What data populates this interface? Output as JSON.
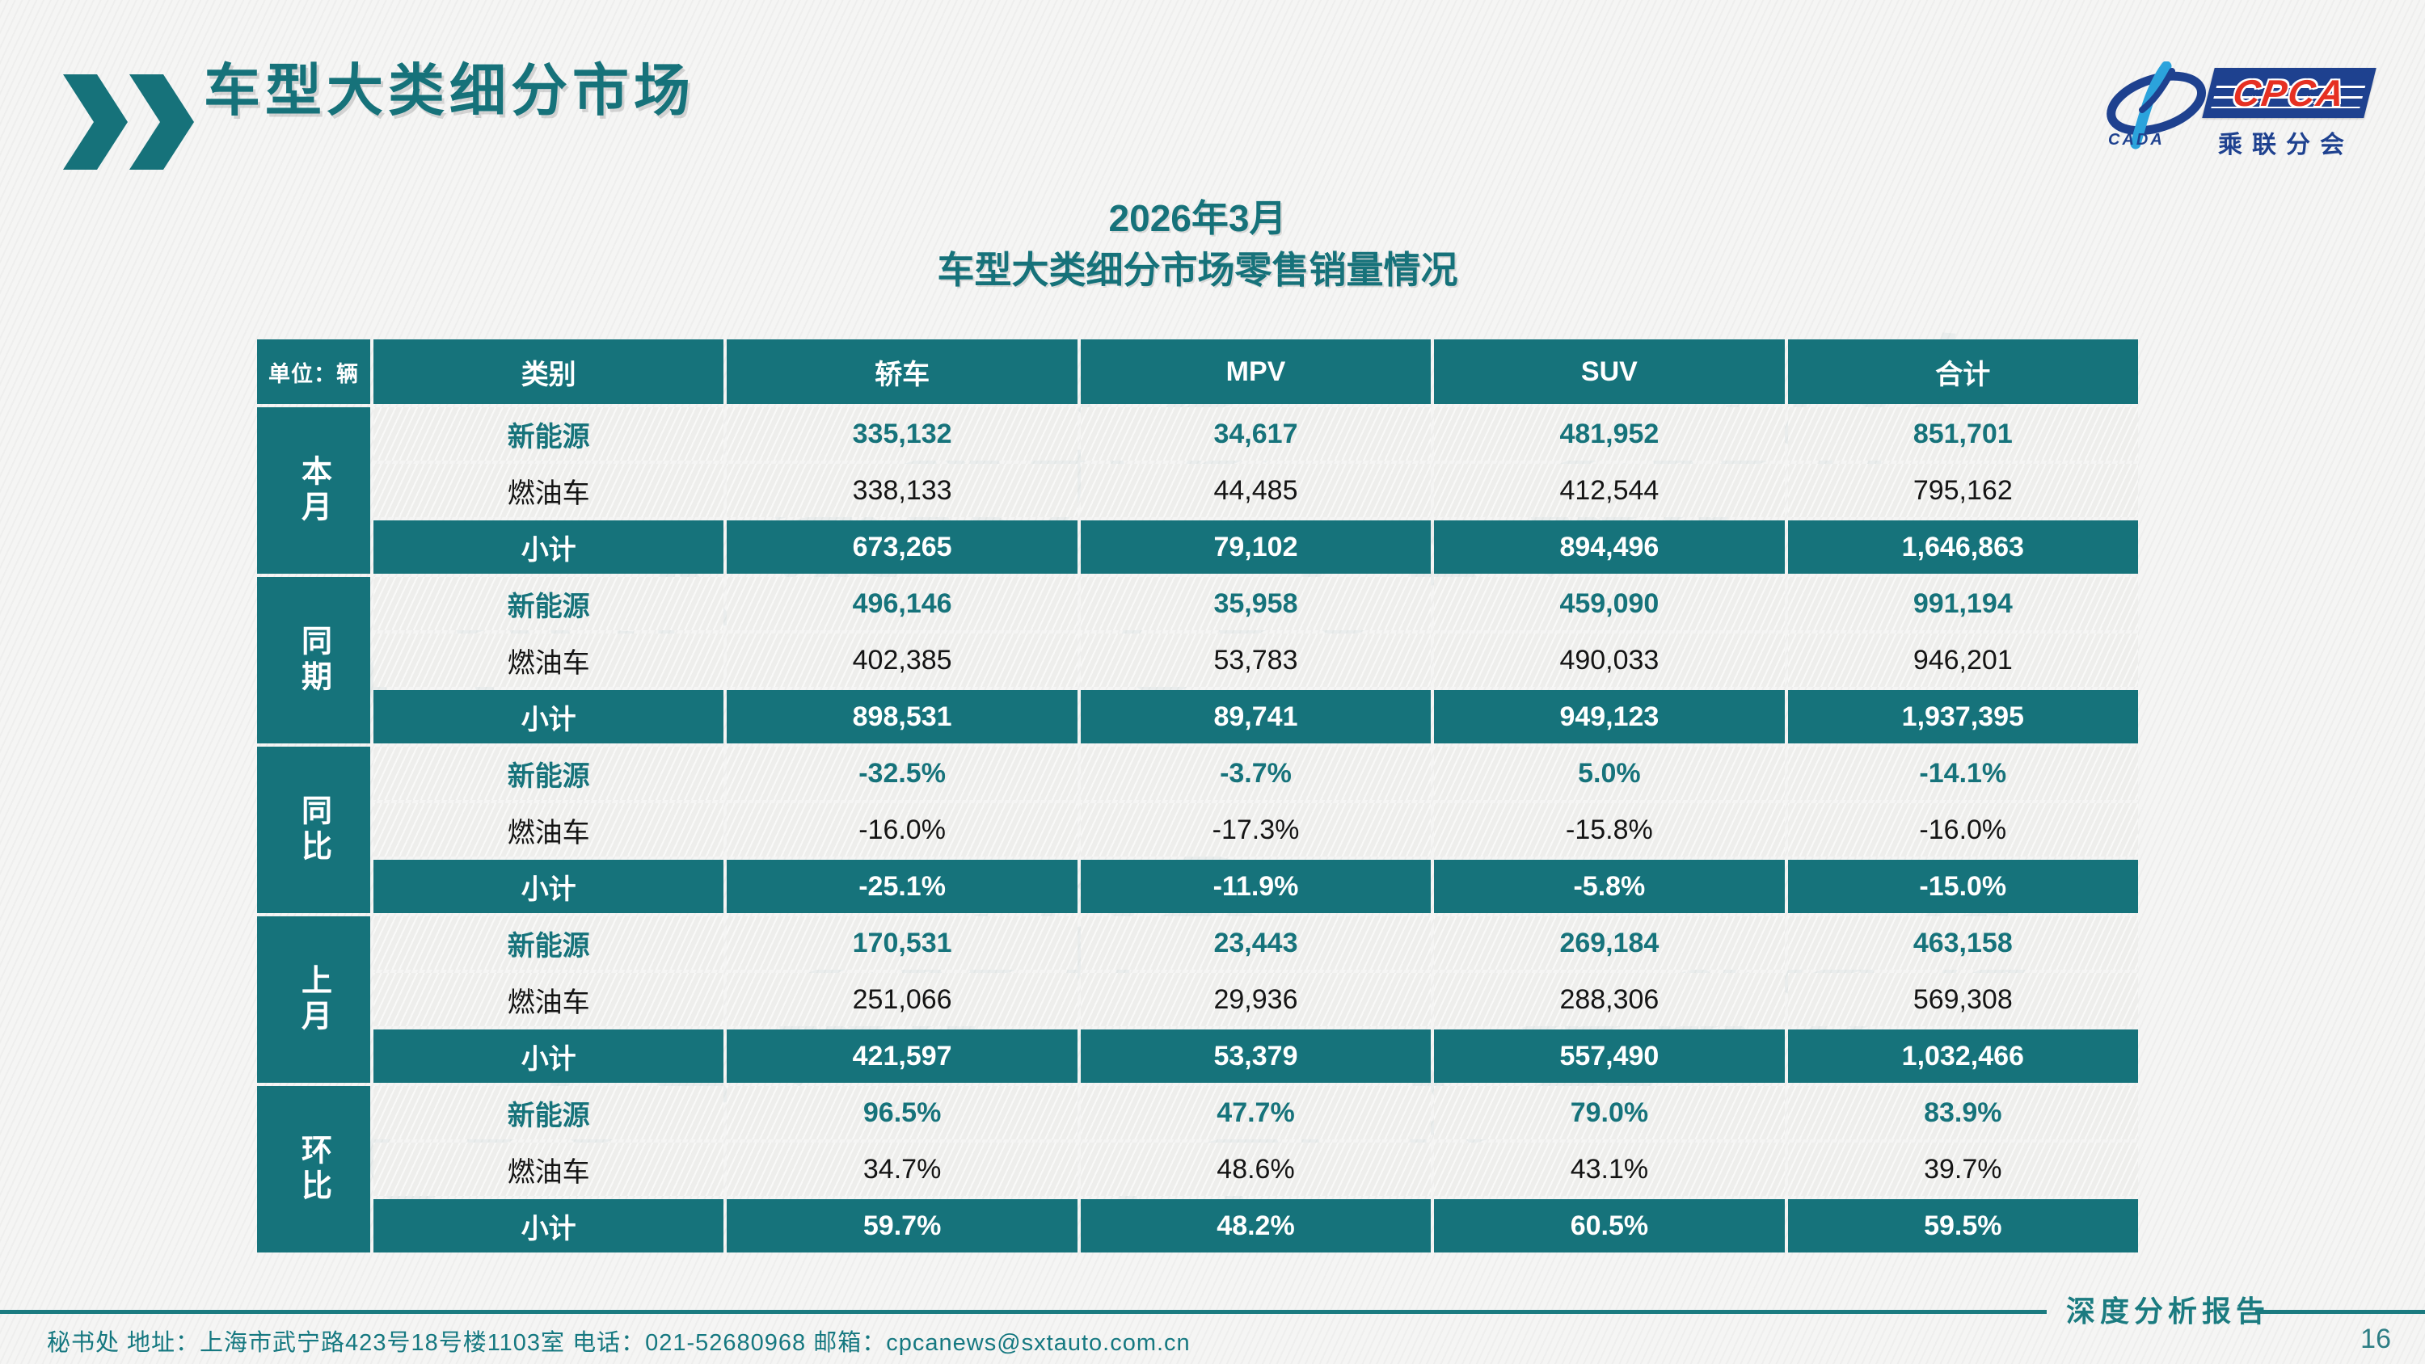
{
  "page": {
    "title": "车型大类细分市场",
    "page_number": "16",
    "footer_left": "秘书处   地址：上海市武宁路423号18号楼1103室  电话：021-52680968   邮箱：cpcanews@sxtauto.com.cn",
    "footer_right_label": "深度分析报告"
  },
  "logo": {
    "cpca": "CPCA",
    "cada": "CADA",
    "subtitle": "乘联分会"
  },
  "watermark_text": "CPCA 乘联分会",
  "colors": {
    "teal": "#16737b",
    "title_teal": "#16727a",
    "logo_blue": "#1e418f",
    "logo_light_blue": "#2ba3dc",
    "logo_red": "#e63022",
    "footer_teal": "#1b7b80"
  },
  "table": {
    "title_line1": "2026年3月",
    "title_line2": "车型大类细分市场零售销量情况",
    "unit_label": "单位：辆",
    "columns": [
      "类别",
      "轿车",
      "MPV",
      "SUV",
      "合计"
    ],
    "groups": [
      {
        "label": "本月",
        "rows": [
          {
            "label": "新能源",
            "style": "ne",
            "values": [
              "335,132",
              "34,617",
              "481,952",
              "851,701"
            ]
          },
          {
            "label": "燃油车",
            "style": "fuel",
            "values": [
              "338,133",
              "44,485",
              "412,544",
              "795,162"
            ]
          },
          {
            "label": "小计",
            "style": "subtotal",
            "values": [
              "673,265",
              "79,102",
              "894,496",
              "1,646,863"
            ]
          }
        ]
      },
      {
        "label": "同期",
        "rows": [
          {
            "label": "新能源",
            "style": "ne",
            "values": [
              "496,146",
              "35,958",
              "459,090",
              "991,194"
            ]
          },
          {
            "label": "燃油车",
            "style": "fuel",
            "values": [
              "402,385",
              "53,783",
              "490,033",
              "946,201"
            ]
          },
          {
            "label": "小计",
            "style": "subtotal",
            "values": [
              "898,531",
              "89,741",
              "949,123",
              "1,937,395"
            ]
          }
        ]
      },
      {
        "label": "同比",
        "rows": [
          {
            "label": "新能源",
            "style": "ne",
            "values": [
              "-32.5%",
              "-3.7%",
              "5.0%",
              "-14.1%"
            ]
          },
          {
            "label": "燃油车",
            "style": "fuel",
            "values": [
              "-16.0%",
              "-17.3%",
              "-15.8%",
              "-16.0%"
            ]
          },
          {
            "label": "小计",
            "style": "subtotal",
            "values": [
              "-25.1%",
              "-11.9%",
              "-5.8%",
              "-15.0%"
            ]
          }
        ]
      },
      {
        "label": "上月",
        "rows": [
          {
            "label": "新能源",
            "style": "ne",
            "values": [
              "170,531",
              "23,443",
              "269,184",
              "463,158"
            ]
          },
          {
            "label": "燃油车",
            "style": "fuel",
            "values": [
              "251,066",
              "29,936",
              "288,306",
              "569,308"
            ]
          },
          {
            "label": "小计",
            "style": "subtotal",
            "values": [
              "421,597",
              "53,379",
              "557,490",
              "1,032,466"
            ]
          }
        ]
      },
      {
        "label": "环比",
        "rows": [
          {
            "label": "新能源",
            "style": "ne",
            "values": [
              "96.5%",
              "47.7%",
              "79.0%",
              "83.9%"
            ]
          },
          {
            "label": "燃油车",
            "style": "fuel",
            "values": [
              "34.7%",
              "48.6%",
              "43.1%",
              "39.7%"
            ]
          },
          {
            "label": "小计",
            "style": "subtotal",
            "values": [
              "59.7%",
              "48.2%",
              "60.5%",
              "59.5%"
            ]
          }
        ]
      }
    ]
  }
}
